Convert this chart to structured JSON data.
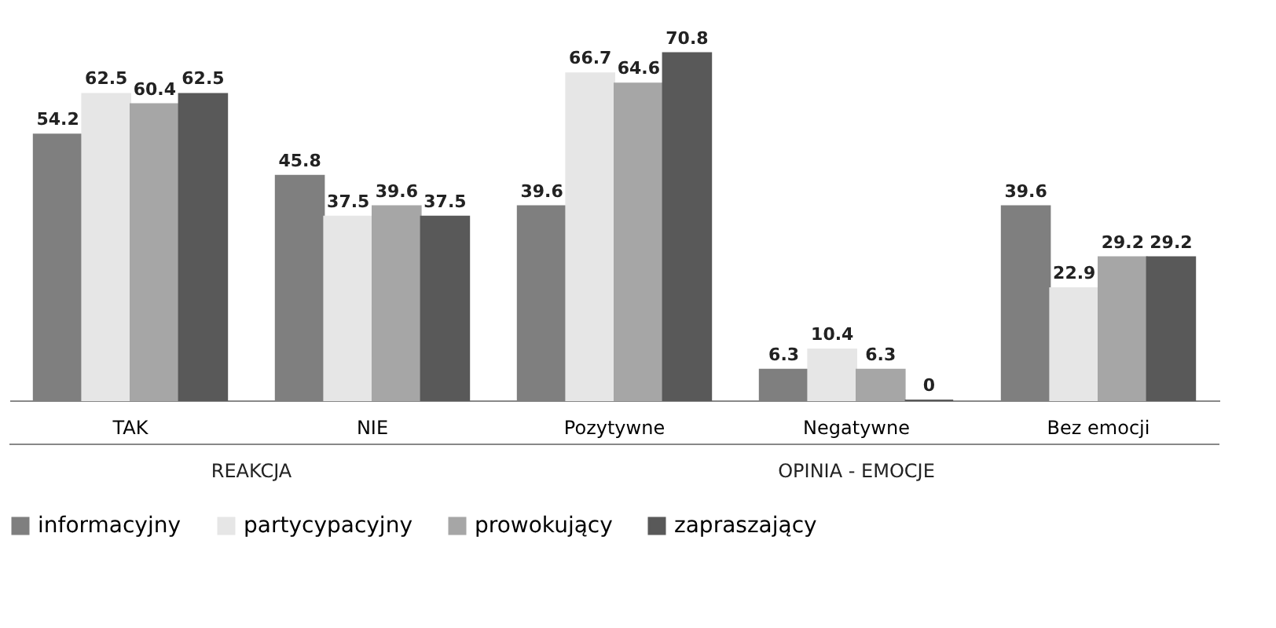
{
  "chart_data": {
    "type": "bar",
    "categories": [
      "TAK",
      "NIE",
      "Pozytywne",
      "Negatywne",
      "Bez emocji"
    ],
    "series": [
      {
        "name": "informacyjny",
        "color": "#7f7f7f",
        "values": [
          54.2,
          45.8,
          39.6,
          6.3,
          39.6
        ]
      },
      {
        "name": "partycypacyjny",
        "color": "#e6e6e6",
        "values": [
          62.5,
          37.5,
          66.7,
          10.4,
          22.9
        ]
      },
      {
        "name": "prowokujący",
        "color": "#a6a6a6",
        "values": [
          60.4,
          39.6,
          64.6,
          6.3,
          29.2
        ]
      },
      {
        "name": "zapraszający",
        "color": "#595959",
        "values": [
          62.5,
          37.5,
          70.8,
          0,
          29.2
        ]
      }
    ],
    "data_labels": true,
    "legend": "bottom",
    "grid": false,
    "annotations": [
      "REAKCJA",
      "OPINIA - EMOCJE"
    ]
  }
}
